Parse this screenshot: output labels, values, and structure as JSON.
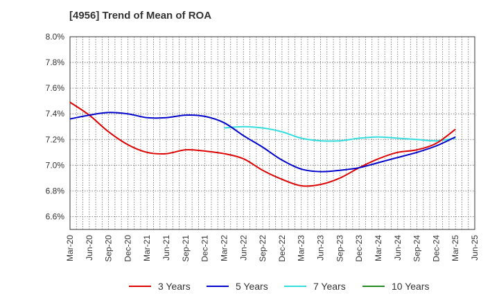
{
  "chart_data": {
    "type": "line",
    "title": "[4956]  Trend of Mean of ROA",
    "xlabel": "",
    "ylabel": "",
    "ylim": [
      6.5,
      8.0
    ],
    "y_ticks": [
      "6.6%",
      "6.8%",
      "7.0%",
      "7.2%",
      "7.4%",
      "7.6%",
      "7.8%",
      "8.0%"
    ],
    "categories": [
      "Mar-20",
      "Jun-20",
      "Sep-20",
      "Dec-20",
      "Mar-21",
      "Jun-21",
      "Sep-21",
      "Dec-21",
      "Mar-22",
      "Jun-22",
      "Sep-22",
      "Dec-22",
      "Mar-23",
      "Jun-23",
      "Sep-23",
      "Dec-23",
      "Mar-24",
      "Jun-24",
      "Sep-24",
      "Dec-24",
      "Mar-25",
      "Jun-25"
    ],
    "series": [
      {
        "name": "3 Years",
        "color": "#dd0000",
        "values": [
          7.49,
          7.39,
          7.26,
          7.16,
          7.1,
          7.09,
          7.12,
          7.11,
          7.09,
          7.05,
          6.96,
          6.89,
          6.84,
          6.85,
          6.9,
          6.98,
          7.05,
          7.1,
          7.12,
          7.17,
          7.28,
          null
        ]
      },
      {
        "name": "5 Years",
        "color": "#0000cc",
        "values": [
          7.36,
          7.39,
          7.41,
          7.4,
          7.37,
          7.37,
          7.39,
          7.38,
          7.33,
          7.23,
          7.14,
          7.04,
          6.97,
          6.95,
          6.96,
          6.98,
          7.02,
          7.06,
          7.1,
          7.15,
          7.22,
          null
        ]
      },
      {
        "name": "7 Years",
        "color": "#33dddd",
        "values": [
          null,
          null,
          null,
          null,
          null,
          null,
          null,
          null,
          7.29,
          7.3,
          7.29,
          7.26,
          7.21,
          7.19,
          7.19,
          7.21,
          7.22,
          7.21,
          7.2,
          7.19,
          7.21,
          null
        ]
      },
      {
        "name": "10 Years",
        "color": "#228822",
        "values": [
          null,
          null,
          null,
          null,
          null,
          null,
          null,
          null,
          null,
          null,
          null,
          null,
          null,
          null,
          null,
          null,
          null,
          null,
          null,
          null,
          null,
          null
        ]
      }
    ],
    "grid": true,
    "legend_position": "bottom"
  }
}
